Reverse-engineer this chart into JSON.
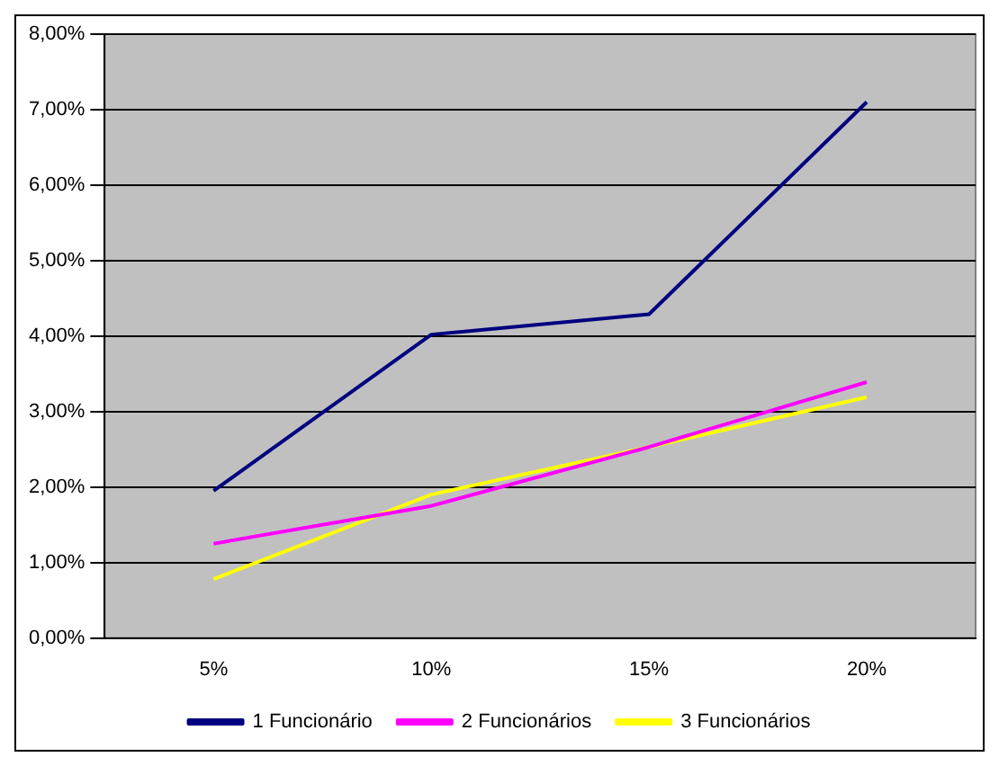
{
  "chart_data": {
    "type": "line",
    "categories": [
      "5%",
      "10%",
      "15%",
      "20%"
    ],
    "series": [
      {
        "name": "1 Funcionário",
        "color": "#000080",
        "values": [
          1.95,
          4.02,
          4.29,
          7.1
        ]
      },
      {
        "name": "2 Funcionários",
        "color": "#ff00ff",
        "values": [
          1.25,
          1.75,
          2.53,
          3.39
        ]
      },
      {
        "name": "3 Funcionários",
        "color": "#ffff00",
        "values": [
          0.78,
          1.9,
          2.53,
          3.19
        ]
      }
    ],
    "ylim": [
      0,
      8
    ],
    "yticks": [
      {
        "value": 0,
        "label": "0,00%"
      },
      {
        "value": 1,
        "label": "1,00%"
      },
      {
        "value": 2,
        "label": "2,00%"
      },
      {
        "value": 3,
        "label": "3,00%"
      },
      {
        "value": 4,
        "label": "4,00%"
      },
      {
        "value": 5,
        "label": "5,00%"
      },
      {
        "value": 6,
        "label": "6,00%"
      },
      {
        "value": 7,
        "label": "7,00%"
      },
      {
        "value": 8,
        "label": "8,00%"
      }
    ],
    "grid": "y",
    "legend": "bottom",
    "marker": "none",
    "line_style": "solid"
  }
}
